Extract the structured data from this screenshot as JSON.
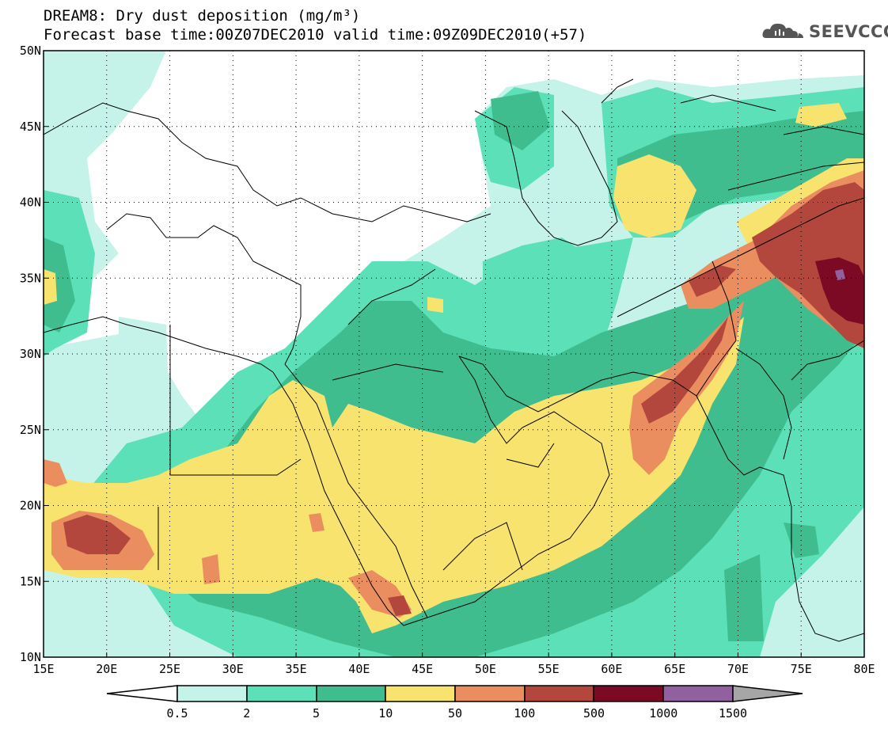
{
  "title": {
    "line1": "DREAM8: Dry dust deposition (mg/m³)",
    "line2": "Forecast base time:00Z07DEC2010 valid time:09Z09DEC2010(+57)"
  },
  "logo": {
    "text": "SEEVCCC",
    "icon": "cloud-icon"
  },
  "map": {
    "lon_range": [
      15,
      80
    ],
    "lat_range": [
      10,
      50
    ],
    "lon_labels": [
      "15E",
      "20E",
      "25E",
      "30E",
      "35E",
      "40E",
      "45E",
      "50E",
      "55E",
      "60E",
      "65E",
      "70E",
      "75E",
      "80E"
    ],
    "lat_labels": [
      "10N",
      "15N",
      "20N",
      "25N",
      "30N",
      "35N",
      "40N",
      "45N",
      "50N"
    ],
    "gridlines": "dotted"
  },
  "colorbar": {
    "labels": [
      "0.5",
      "2",
      "5",
      "10",
      "50",
      "100",
      "500",
      "1000",
      "1500"
    ],
    "colors": {
      "below": "#ffffff",
      "c1": "#c6f3e9",
      "c2": "#5be0b7",
      "c3": "#3fbd8f",
      "c4": "#f7e36e",
      "c5": "#ea8e60",
      "c6": "#b4473d",
      "c7": "#7d0a25",
      "c8": "#91609f",
      "above": "#a6a6a6"
    }
  }
}
